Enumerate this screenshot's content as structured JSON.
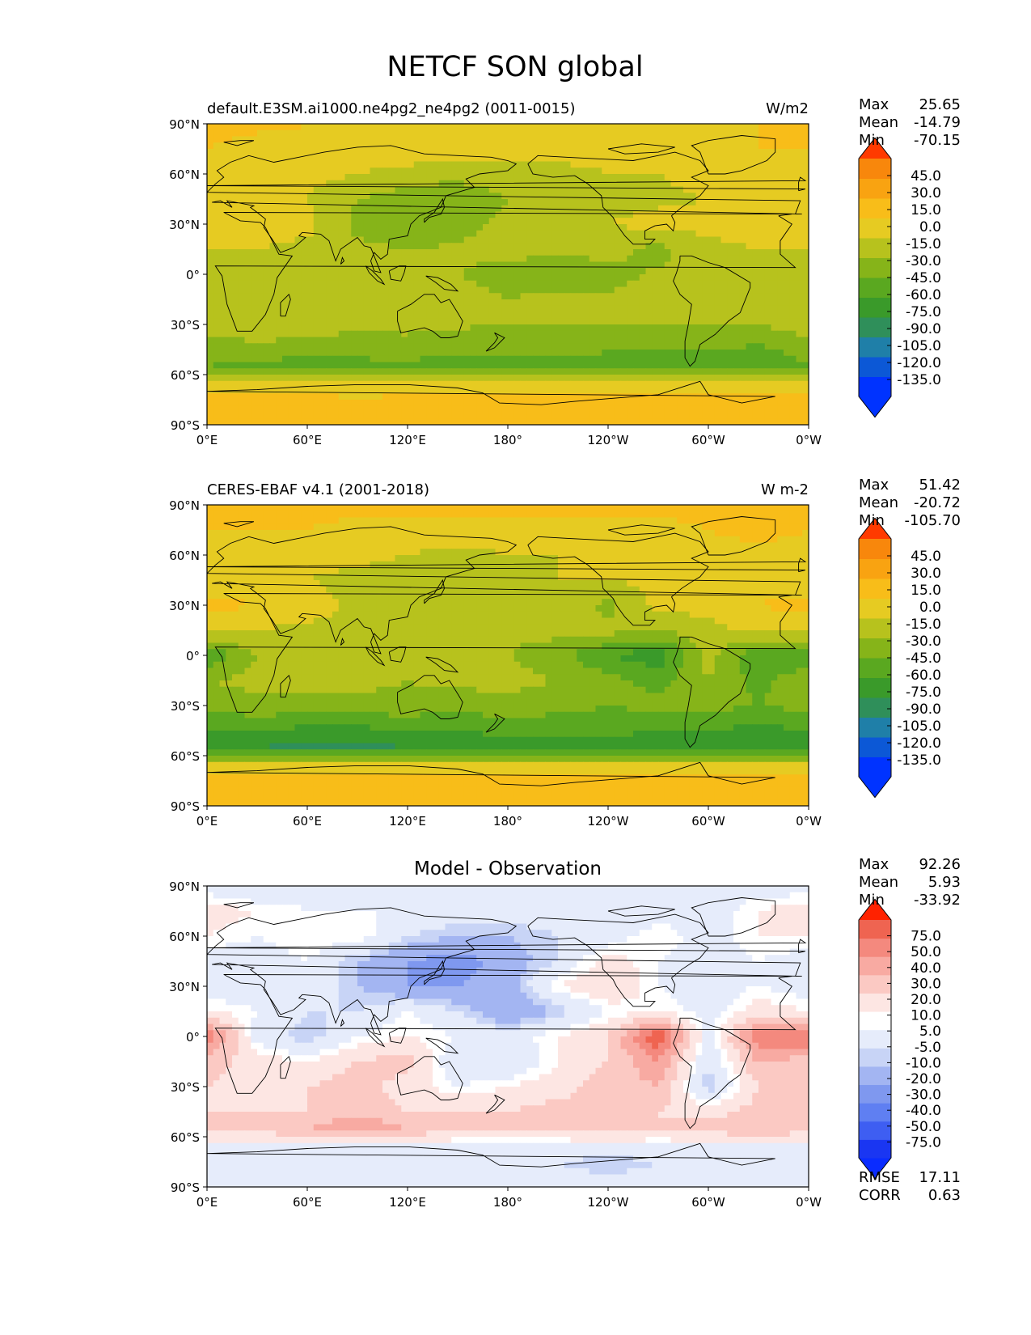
{
  "figure": {
    "title": "NETCF SON global"
  },
  "colors": {
    "main_levels": [
      "#0033ff",
      "#0c58d6",
      "#1f7fa8",
      "#2f8f5a",
      "#3a9a2a",
      "#5aa820",
      "#86b419",
      "#b7c21d",
      "#e6cb22",
      "#f8bd19",
      "#f9a311",
      "#f8870c",
      "#f26309",
      "#ef2a06"
    ],
    "main_under": "#0033ff",
    "main_over": "#ff3a00",
    "diff_levels": [
      "#1a36f2",
      "#3e5ef2",
      "#5f7ff2",
      "#7f98ef",
      "#a3b5f2",
      "#c8d4f6",
      "#e6ecfb",
      "#ffffff",
      "#fde6e3",
      "#fbc9c3",
      "#f8aaa2",
      "#f4897e",
      "#ef6451",
      "#e8402b",
      "#e01f10"
    ],
    "diff_under": "#0a2cff",
    "diff_over": "#ff2200",
    "coast": "#000000"
  },
  "axes": {
    "lat_ticks": [
      "90°N",
      "60°N",
      "30°N",
      "0°",
      "30°S",
      "60°S",
      "90°S"
    ],
    "lon_ticks": [
      "0°E",
      "60°E",
      "120°E",
      "180°",
      "120°W",
      "60°W",
      "0°W"
    ]
  },
  "chart_data": [
    {
      "type": "heatmap",
      "title": "",
      "left_label": "default.E3SM.ai1000.ne4pg2_ne4pg2 (0011-0015)",
      "units": "W/m2",
      "stats": {
        "max": "25.65",
        "mean": "-14.79",
        "min": "-70.15"
      },
      "colorbar_labels": [
        "45.0",
        "30.0",
        "15.0",
        "0.0",
        "-15.0",
        "-30.0",
        "-45.0",
        "-60.0",
        "-75.0",
        "-90.0",
        "-105.0",
        "-120.0",
        "-135.0"
      ],
      "levels": [
        -135,
        -120,
        -105,
        -90,
        -75,
        -60,
        -45,
        -30,
        -15,
        0,
        15,
        30,
        45
      ],
      "lat": [
        90,
        75,
        60,
        45,
        30,
        15,
        0,
        -15,
        -30,
        -45,
        -55,
        -65,
        -75,
        -90
      ],
      "lon": [
        0,
        30,
        60,
        90,
        120,
        150,
        180,
        210,
        240,
        270,
        300,
        330,
        360
      ],
      "values": [
        [
          5,
          3,
          0,
          -2,
          -5,
          -6,
          -2,
          -5,
          -8,
          -5,
          -5,
          0,
          5
        ],
        [
          0,
          -5,
          -2,
          -5,
          -5,
          -8,
          -10,
          -8,
          -10,
          -5,
          -5,
          0,
          0
        ],
        [
          -5,
          -8,
          -10,
          -15,
          -20,
          -25,
          -20,
          -20,
          -15,
          -15,
          -10,
          -5,
          -5
        ],
        [
          -10,
          -10,
          -15,
          -30,
          -40,
          -42,
          -30,
          -25,
          -20,
          -18,
          -15,
          -10,
          -10
        ],
        [
          -5,
          -5,
          -10,
          -35,
          -45,
          -35,
          -25,
          -25,
          -15,
          -10,
          -10,
          -5,
          -5
        ],
        [
          -15,
          -15,
          -20,
          -25,
          -30,
          -28,
          -25,
          -25,
          -25,
          -35,
          -20,
          -15,
          -15
        ],
        [
          -20,
          -25,
          -25,
          -30,
          -25,
          -30,
          -35,
          -45,
          -35,
          -28,
          -25,
          -25,
          -20
        ],
        [
          -18,
          -20,
          -20,
          -22,
          -25,
          -25,
          -30,
          -25,
          -28,
          -25,
          -25,
          -30,
          -18
        ],
        [
          -20,
          -20,
          -25,
          -25,
          -25,
          -28,
          -30,
          -30,
          -30,
          -28,
          -30,
          -30,
          -20
        ],
        [
          -40,
          -35,
          -35,
          -40,
          -38,
          -40,
          -42,
          -40,
          -42,
          -45,
          -45,
          -48,
          -40
        ],
        [
          -45,
          -50,
          -55,
          -50,
          -48,
          -55,
          -55,
          -50,
          -60,
          -50,
          -55,
          -55,
          -45
        ],
        [
          -5,
          -5,
          -5,
          -10,
          -10,
          -10,
          -10,
          -10,
          -10,
          -10,
          -5,
          -5,
          -5
        ],
        [
          5,
          5,
          5,
          0,
          5,
          5,
          5,
          5,
          5,
          5,
          5,
          5,
          5
        ],
        [
          5,
          5,
          5,
          5,
          5,
          5,
          5,
          5,
          5,
          5,
          5,
          5,
          5
        ]
      ]
    },
    {
      "type": "heatmap",
      "title": "",
      "left_label": "CERES-EBAF v4.1 (2001-2018)",
      "units": "W m-2",
      "stats": {
        "max": "51.42",
        "mean": "-20.72",
        "min": "-105.70"
      },
      "colorbar_labels": [
        "45.0",
        "30.0",
        "15.0",
        "0.0",
        "-15.0",
        "-30.0",
        "-45.0",
        "-60.0",
        "-75.0",
        "-90.0",
        "-105.0",
        "-120.0",
        "-135.0"
      ],
      "levels": [
        -135,
        -120,
        -105,
        -90,
        -75,
        -60,
        -45,
        -30,
        -15,
        0,
        15,
        30,
        45
      ],
      "lat": [
        90,
        75,
        60,
        45,
        30,
        15,
        0,
        -15,
        -30,
        -45,
        -55,
        -65,
        -75,
        -90
      ],
      "lon": [
        0,
        30,
        60,
        90,
        120,
        150,
        180,
        210,
        240,
        270,
        300,
        330,
        360
      ],
      "values": [
        [
          5,
          5,
          5,
          5,
          5,
          5,
          5,
          5,
          5,
          5,
          5,
          5,
          5
        ],
        [
          0,
          0,
          0,
          -5,
          -5,
          -5,
          -5,
          -5,
          -5,
          -5,
          0,
          5,
          0
        ],
        [
          -5,
          -5,
          -10,
          -10,
          -15,
          -20,
          -15,
          -15,
          -10,
          -10,
          -5,
          -5,
          -5
        ],
        [
          -10,
          -10,
          -15,
          -20,
          -25,
          -20,
          -20,
          -15,
          -15,
          -10,
          -10,
          -5,
          -10
        ],
        [
          5,
          0,
          -5,
          -20,
          -30,
          -20,
          -15,
          -15,
          -35,
          -10,
          -10,
          0,
          5
        ],
        [
          -10,
          -15,
          -20,
          -20,
          -30,
          -25,
          -25,
          -25,
          -25,
          -30,
          -20,
          -10,
          -10
        ],
        [
          -60,
          -30,
          -30,
          -30,
          -25,
          -30,
          -30,
          -40,
          -60,
          -70,
          -25,
          -60,
          -60
        ],
        [
          -30,
          -25,
          -25,
          -25,
          -30,
          -25,
          -25,
          -30,
          -40,
          -50,
          -30,
          -50,
          -30
        ],
        [
          -40,
          -35,
          -35,
          -35,
          -35,
          -40,
          -35,
          -40,
          -45,
          -40,
          -40,
          -45,
          -40
        ],
        [
          -60,
          -60,
          -65,
          -65,
          -60,
          -60,
          -55,
          -55,
          -55,
          -60,
          -60,
          -65,
          -60
        ],
        [
          -75,
          -75,
          -80,
          -80,
          -75,
          -70,
          -70,
          -70,
          -70,
          -70,
          -75,
          -75,
          -75
        ],
        [
          -10,
          -10,
          -10,
          -15,
          -15,
          -15,
          -15,
          -15,
          -15,
          -15,
          -10,
          -10,
          -10
        ],
        [
          5,
          5,
          5,
          5,
          5,
          5,
          5,
          5,
          5,
          5,
          5,
          5,
          5
        ],
        [
          5,
          5,
          5,
          5,
          5,
          5,
          5,
          5,
          5,
          5,
          5,
          5,
          5
        ]
      ]
    },
    {
      "type": "heatmap",
      "title": "Model - Observation",
      "left_label": "",
      "units": "",
      "stats": {
        "max": "92.26",
        "mean": "5.93",
        "min": "-33.92"
      },
      "extra_stats": {
        "rmse": "17.11",
        "corr": "0.63"
      },
      "colorbar_labels": [
        "75.0",
        "50.0",
        "40.0",
        "30.0",
        "20.0",
        "10.0",
        "5.0",
        "-5.0",
        "-10.0",
        "-20.0",
        "-30.0",
        "-40.0",
        "-50.0",
        "-75.0"
      ],
      "levels": [
        -75,
        -50,
        -40,
        -30,
        -20,
        -10,
        -5,
        5,
        10,
        20,
        30,
        40,
        50,
        75
      ],
      "lat": [
        90,
        75,
        60,
        45,
        30,
        15,
        0,
        -15,
        -30,
        -45,
        -55,
        -65,
        -75,
        -90
      ],
      "lon": [
        0,
        30,
        60,
        90,
        120,
        150,
        180,
        210,
        240,
        270,
        300,
        330,
        360
      ],
      "values": [
        [
          0,
          -5,
          0,
          -5,
          -5,
          -5,
          0,
          0,
          0,
          0,
          0,
          0,
          0
        ],
        [
          15,
          10,
          5,
          5,
          5,
          0,
          0,
          0,
          -5,
          0,
          0,
          10,
          15
        ],
        [
          10,
          5,
          10,
          10,
          -5,
          -10,
          -10,
          -5,
          0,
          10,
          0,
          10,
          10
        ],
        [
          0,
          0,
          5,
          -10,
          -20,
          -25,
          -15,
          -5,
          15,
          5,
          0,
          5,
          0
        ],
        [
          0,
          0,
          5,
          -10,
          -20,
          -20,
          -15,
          10,
          20,
          5,
          0,
          5,
          0
        ],
        [
          10,
          5,
          -5,
          -5,
          5,
          -5,
          -20,
          -10,
          5,
          10,
          0,
          15,
          10
        ],
        [
          50,
          0,
          -10,
          5,
          10,
          5,
          0,
          10,
          20,
          60,
          0,
          50,
          50
        ],
        [
          25,
          15,
          10,
          20,
          25,
          -5,
          -5,
          10,
          20,
          40,
          -5,
          30,
          25
        ],
        [
          20,
          15,
          20,
          25,
          15,
          5,
          10,
          15,
          25,
          30,
          -10,
          20,
          20
        ],
        [
          20,
          20,
          20,
          25,
          20,
          20,
          20,
          25,
          25,
          20,
          15,
          25,
          20
        ],
        [
          25,
          25,
          30,
          40,
          30,
          20,
          20,
          20,
          25,
          20,
          25,
          30,
          25
        ],
        [
          5,
          5,
          5,
          5,
          5,
          5,
          5,
          5,
          5,
          5,
          5,
          5,
          5
        ],
        [
          0,
          0,
          0,
          0,
          0,
          0,
          0,
          -5,
          -10,
          -5,
          0,
          0,
          0
        ],
        [
          0,
          0,
          0,
          0,
          0,
          0,
          0,
          0,
          0,
          0,
          0,
          0,
          0
        ]
      ]
    }
  ],
  "stat_labels": {
    "max": "Max",
    "mean": "Mean",
    "min": "Min",
    "rmse": "RMSE",
    "corr": "CORR"
  }
}
